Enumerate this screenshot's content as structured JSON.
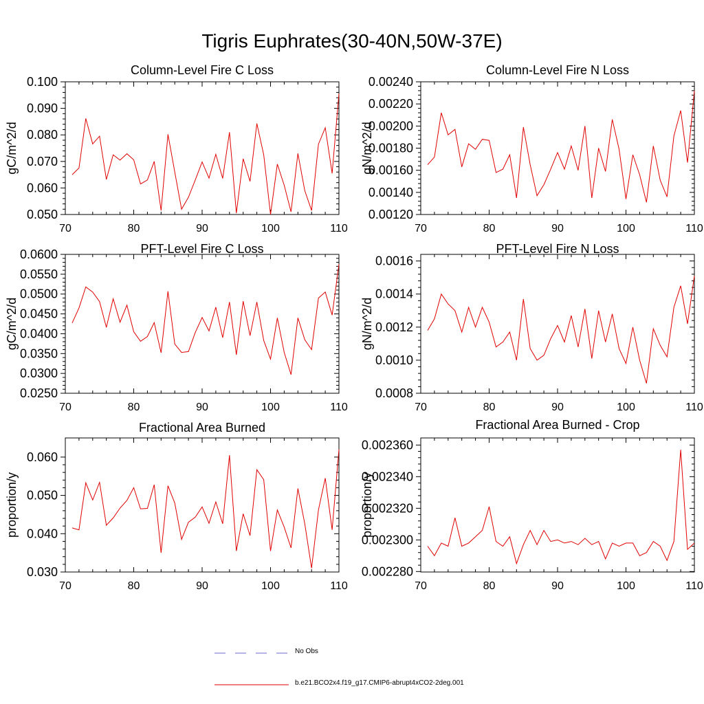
{
  "title": "Tigris Euphrates(30-40N,50W-37E)",
  "colors": {
    "model": "#e00000",
    "obs": "#6a6acf",
    "axis": "#000000"
  },
  "legend": {
    "obs_label": "No Obs",
    "model_label": "b.e21.BCO2x4.f19_g17.CMIP6-abrupt4xCO2-2deg.001"
  },
  "chart_data": [
    {
      "type": "line",
      "title": "Column-Level Fire C Loss",
      "ylabel": "gC/m^2/d",
      "xlabel": "",
      "xlim": [
        70,
        110
      ],
      "ylim": [
        0.05,
        0.1
      ],
      "xticks": [
        70,
        80,
        90,
        100,
        110
      ],
      "xtick_labels": [
        "70",
        "80",
        "90",
        "100",
        "110"
      ],
      "yticks": [
        0.05,
        0.06,
        0.07,
        0.08,
        0.09,
        0.1
      ],
      "ytick_labels": [
        "0.050",
        "0.060",
        "0.070",
        "0.080",
        "0.090",
        "0.100"
      ],
      "x": [
        71,
        72,
        73,
        74,
        75,
        76,
        77,
        78,
        79,
        80,
        81,
        82,
        83,
        84,
        85,
        86,
        87,
        88,
        89,
        90,
        91,
        92,
        93,
        94,
        95,
        96,
        97,
        98,
        99,
        100,
        101,
        102,
        103,
        104,
        105,
        106,
        107,
        108,
        109,
        110
      ],
      "series": [
        {
          "name": "b.e21.BCO2x4.f19_g17.CMIP6-abrupt4xCO2-2deg.001",
          "values": [
            0.065,
            0.0675,
            0.0862,
            0.0766,
            0.0795,
            0.0632,
            0.0725,
            0.0705,
            0.0729,
            0.0706,
            0.0615,
            0.063,
            0.07,
            0.0515,
            0.0802,
            0.066,
            0.052,
            0.0565,
            0.063,
            0.0698,
            0.0637,
            0.0727,
            0.0636,
            0.081,
            0.0505,
            0.071,
            0.0625,
            0.0843,
            0.0725,
            0.05,
            0.069,
            0.061,
            0.051,
            0.073,
            0.059,
            0.0515,
            0.0765,
            0.0827,
            0.0655,
            0.0955
          ]
        }
      ]
    },
    {
      "type": "line",
      "title": "Column-Level Fire N Loss",
      "ylabel": "gN/m^2/d",
      "xlabel": "",
      "xlim": [
        70,
        110
      ],
      "ylim": [
        0.0012,
        0.0024
      ],
      "xticks": [
        70,
        80,
        90,
        100,
        110
      ],
      "xtick_labels": [
        "70",
        "80",
        "90",
        "100",
        "110"
      ],
      "yticks": [
        0.0012,
        0.0014,
        0.0016,
        0.0018,
        0.002,
        0.0022,
        0.0024
      ],
      "ytick_labels": [
        "0.00120",
        "0.00140",
        "0.00160",
        "0.00180",
        "0.00200",
        "0.00220",
        "0.00240"
      ],
      "x": [
        71,
        72,
        73,
        74,
        75,
        76,
        77,
        78,
        79,
        80,
        81,
        82,
        83,
        84,
        85,
        86,
        87,
        88,
        89,
        90,
        91,
        92,
        93,
        94,
        95,
        96,
        97,
        98,
        99,
        100,
        101,
        102,
        103,
        104,
        105,
        106,
        107,
        108,
        109,
        110
      ],
      "series": [
        {
          "name": "b.e21.BCO2x4.f19_g17.CMIP6-abrupt4xCO2-2deg.001",
          "values": [
            0.00165,
            0.00172,
            0.00212,
            0.00192,
            0.00197,
            0.00163,
            0.00184,
            0.00179,
            0.00188,
            0.00187,
            0.00158,
            0.00161,
            0.00174,
            0.00135,
            0.00199,
            0.00165,
            0.00137,
            0.00147,
            0.00161,
            0.00176,
            0.00161,
            0.00182,
            0.0016,
            0.002,
            0.00135,
            0.0018,
            0.00159,
            0.00206,
            0.00179,
            0.00134,
            0.00174,
            0.00156,
            0.00131,
            0.00182,
            0.00151,
            0.00136,
            0.00191,
            0.00214,
            0.00167,
            0.00232
          ]
        }
      ]
    },
    {
      "type": "line",
      "title": "PFT-Level Fire C Loss",
      "ylabel": "gC/m^2/d",
      "xlabel": "",
      "xlim": [
        70,
        110
      ],
      "ylim": [
        0.025,
        0.06
      ],
      "xticks": [
        70,
        80,
        90,
        100,
        110
      ],
      "xtick_labels": [
        "70",
        "80",
        "90",
        "100",
        "110"
      ],
      "yticks": [
        0.025,
        0.03,
        0.035,
        0.04,
        0.045,
        0.05,
        0.055,
        0.06
      ],
      "ytick_labels": [
        "0.0250",
        "0.0300",
        "0.0350",
        "0.0400",
        "0.0450",
        "0.0500",
        "0.0550",
        "0.0600"
      ],
      "x": [
        71,
        72,
        73,
        74,
        75,
        76,
        77,
        78,
        79,
        80,
        81,
        82,
        83,
        84,
        85,
        86,
        87,
        88,
        89,
        90,
        91,
        92,
        93,
        94,
        95,
        96,
        97,
        98,
        99,
        100,
        101,
        102,
        103,
        104,
        105,
        106,
        107,
        108,
        109,
        110
      ],
      "series": [
        {
          "name": "b.e21.BCO2x4.f19_g17.CMIP6-abrupt4xCO2-2deg.001",
          "values": [
            0.0427,
            0.0465,
            0.0518,
            0.0505,
            0.0481,
            0.0416,
            0.0488,
            0.0429,
            0.0472,
            0.0405,
            0.0381,
            0.0393,
            0.0428,
            0.0352,
            0.0507,
            0.0374,
            0.0353,
            0.0355,
            0.0403,
            0.0441,
            0.0407,
            0.0467,
            0.039,
            0.048,
            0.0347,
            0.0482,
            0.0395,
            0.048,
            0.0383,
            0.0336,
            0.044,
            0.0353,
            0.0297,
            0.044,
            0.0385,
            0.036,
            0.049,
            0.0505,
            0.0447,
            0.0575
          ]
        }
      ]
    },
    {
      "type": "line",
      "title": "PFT-Level Fire N Loss",
      "ylabel": "gN/m^2/d",
      "xlabel": "",
      "xlim": [
        70,
        110
      ],
      "ylim": [
        0.0008,
        0.00164
      ],
      "xticks": [
        70,
        80,
        90,
        100,
        110
      ],
      "xtick_labels": [
        "70",
        "80",
        "90",
        "100",
        "110"
      ],
      "yticks": [
        0.0008,
        0.001,
        0.0012,
        0.0014,
        0.0016
      ],
      "ytick_labels": [
        "0.0008",
        "0.0010",
        "0.0012",
        "0.0014",
        "0.0016"
      ],
      "x": [
        71,
        72,
        73,
        74,
        75,
        76,
        77,
        78,
        79,
        80,
        81,
        82,
        83,
        84,
        85,
        86,
        87,
        88,
        89,
        90,
        91,
        92,
        93,
        94,
        95,
        96,
        97,
        98,
        99,
        100,
        101,
        102,
        103,
        104,
        105,
        106,
        107,
        108,
        109,
        110
      ],
      "series": [
        {
          "name": "b.e21.BCO2x4.f19_g17.CMIP6-abrupt4xCO2-2deg.001",
          "values": [
            0.00118,
            0.00125,
            0.0014,
            0.00134,
            0.0013,
            0.00117,
            0.00132,
            0.0012,
            0.00132,
            0.00123,
            0.00108,
            0.00111,
            0.00117,
            0.001,
            0.00137,
            0.00107,
            0.001,
            0.00103,
            0.00113,
            0.00121,
            0.00111,
            0.00127,
            0.00108,
            0.00131,
            0.00101,
            0.0013,
            0.00111,
            0.00128,
            0.00107,
            0.00098,
            0.0012,
            0.001,
            0.00086,
            0.00119,
            0.00109,
            0.00102,
            0.00132,
            0.00145,
            0.00122,
            0.00151
          ]
        }
      ]
    },
    {
      "type": "line",
      "title": "Fractional Area Burned",
      "ylabel": "proportion/y",
      "xlabel": "",
      "xlim": [
        70,
        110
      ],
      "ylim": [
        0.03,
        0.065
      ],
      "xticks": [
        70,
        80,
        90,
        100,
        110
      ],
      "xtick_labels": [
        "70",
        "80",
        "90",
        "100",
        "110"
      ],
      "yticks": [
        0.03,
        0.04,
        0.05,
        0.06
      ],
      "ytick_labels": [
        "0.030",
        "0.040",
        "0.050",
        "0.060"
      ],
      "x": [
        71,
        72,
        73,
        74,
        75,
        76,
        77,
        78,
        79,
        80,
        81,
        82,
        83,
        84,
        85,
        86,
        87,
        88,
        89,
        90,
        91,
        92,
        93,
        94,
        95,
        96,
        97,
        98,
        99,
        100,
        101,
        102,
        103,
        104,
        105,
        106,
        107,
        108,
        109,
        110
      ],
      "series": [
        {
          "name": "b.e21.BCO2x4.f19_g17.CMIP6-abrupt4xCO2-2deg.001",
          "values": [
            0.0415,
            0.041,
            0.0533,
            0.0488,
            0.0534,
            0.0422,
            0.0441,
            0.0467,
            0.0487,
            0.052,
            0.0465,
            0.0466,
            0.0528,
            0.035,
            0.0525,
            0.048,
            0.0385,
            0.043,
            0.0443,
            0.047,
            0.0427,
            0.0483,
            0.0426,
            0.0605,
            0.0355,
            0.0452,
            0.0395,
            0.0567,
            0.0541,
            0.0355,
            0.0462,
            0.0417,
            0.0363,
            0.0518,
            0.0426,
            0.031,
            0.0462,
            0.0545,
            0.041,
            0.062
          ]
        }
      ]
    },
    {
      "type": "line",
      "title": "Fractional Area Burned - Crop",
      "ylabel": "proportion/y",
      "xlabel": "",
      "xlim": [
        70,
        110
      ],
      "ylim": [
        0.0022797,
        0.0023645
      ],
      "xticks": [
        70,
        80,
        90,
        100,
        110
      ],
      "xtick_labels": [
        "70",
        "80",
        "90",
        "100",
        "110"
      ],
      "yticks": [
        0.00228,
        0.0023,
        0.00232,
        0.00234,
        0.00236
      ],
      "ytick_labels": [
        "0.002280",
        "0.002300",
        "0.002320",
        "0.002340",
        "0.002360"
      ],
      "x": [
        71,
        72,
        73,
        74,
        75,
        76,
        77,
        78,
        79,
        80,
        81,
        82,
        83,
        84,
        85,
        86,
        87,
        88,
        89,
        90,
        91,
        92,
        93,
        94,
        95,
        96,
        97,
        98,
        99,
        100,
        101,
        102,
        103,
        104,
        105,
        106,
        107,
        108,
        109,
        110
      ],
      "series": [
        {
          "name": "b.e21.BCO2x4.f19_g17.CMIP6-abrupt4xCO2-2deg.001",
          "values": [
            0.002296,
            0.00229,
            0.002298,
            0.002296,
            0.002314,
            0.002296,
            0.002298,
            0.002302,
            0.002306,
            0.002321,
            0.002299,
            0.002296,
            0.002302,
            0.002285,
            0.002297,
            0.002306,
            0.002297,
            0.002306,
            0.002299,
            0.0023,
            0.002298,
            0.002299,
            0.002297,
            0.002301,
            0.002297,
            0.002299,
            0.002288,
            0.002298,
            0.002296,
            0.002298,
            0.002298,
            0.00229,
            0.002292,
            0.002299,
            0.002296,
            0.002287,
            0.002299,
            0.002357,
            0.002294,
            0.002298
          ]
        }
      ]
    }
  ]
}
